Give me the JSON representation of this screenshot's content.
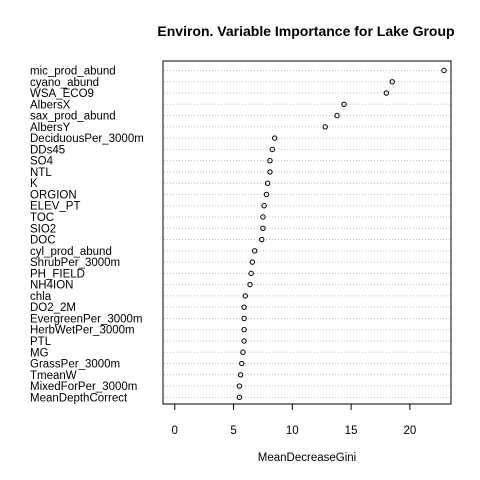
{
  "chart_data": {
    "type": "scatter",
    "title": "Environ. Variable Importance for Lake Group",
    "xlabel": "MeanDecreaseGini",
    "ylabel": "",
    "xlim": [
      -1,
      23.5
    ],
    "xticks": [
      0,
      5,
      10,
      15,
      20
    ],
    "grid": "dotted horizontal guide lines",
    "variables": [
      {
        "name": "mic_prod_abund",
        "value": 22.9
      },
      {
        "name": "cyano_abund",
        "value": 18.5
      },
      {
        "name": "WSA_ECO9",
        "value": 18.0
      },
      {
        "name": "AlbersX",
        "value": 14.4
      },
      {
        "name": "sax_prod_abund",
        "value": 13.8
      },
      {
        "name": "AlbersY",
        "value": 12.8
      },
      {
        "name": "DeciduousPer_3000m",
        "value": 8.5
      },
      {
        "name": "DDs45",
        "value": 8.3
      },
      {
        "name": "SO4",
        "value": 8.1
      },
      {
        "name": "NTL",
        "value": 8.1
      },
      {
        "name": "K",
        "value": 7.9
      },
      {
        "name": "ORGION",
        "value": 7.8
      },
      {
        "name": "ELEV_PT",
        "value": 7.6
      },
      {
        "name": "TOC",
        "value": 7.5
      },
      {
        "name": "SIO2",
        "value": 7.5
      },
      {
        "name": "DOC",
        "value": 7.4
      },
      {
        "name": "cyl_prod_abund",
        "value": 6.8
      },
      {
        "name": "ShrubPer_3000m",
        "value": 6.6
      },
      {
        "name": "PH_FIELD",
        "value": 6.5
      },
      {
        "name": "NH4ION",
        "value": 6.4
      },
      {
        "name": "chla",
        "value": 6.0
      },
      {
        "name": "DO2_2M",
        "value": 5.9
      },
      {
        "name": "EvergreenPer_3000m",
        "value": 5.9
      },
      {
        "name": "HerbWetPer_3000m",
        "value": 5.9
      },
      {
        "name": "PTL",
        "value": 5.9
      },
      {
        "name": "MG",
        "value": 5.8
      },
      {
        "name": "GrassPer_3000m",
        "value": 5.7
      },
      {
        "name": "TmeanW",
        "value": 5.6
      },
      {
        "name": "MixedForPer_3000m",
        "value": 5.5
      },
      {
        "name": "MeanDepthCorrect",
        "value": 5.5
      }
    ]
  }
}
